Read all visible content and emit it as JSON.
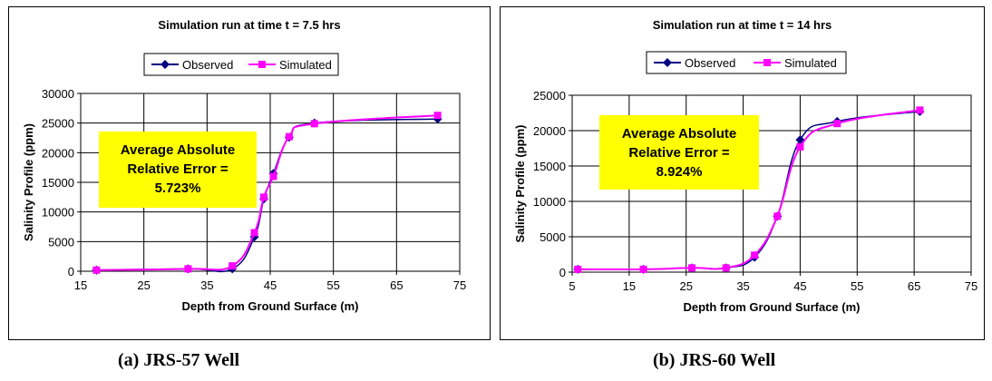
{
  "captions": [
    "(a)  JRS-57 Well",
    "(b)  JRS-60 Well"
  ],
  "colors": {
    "observed": "#000080",
    "simulated": "#ff00ff",
    "error_box": "#ffff00"
  },
  "chart_data": [
    {
      "type": "line",
      "title": "Simulation run at time t = 7.5 hrs",
      "xlabel": "Depth from Ground Surface (m)",
      "ylabel": "Salinity Profile (ppm)",
      "xlim": [
        15,
        75
      ],
      "ylim": [
        0,
        30000
      ],
      "xticks": [
        "15",
        "25",
        "35",
        "45",
        "55",
        "65",
        "75"
      ],
      "yticks": [
        "0",
        "5000",
        "10000",
        "15000",
        "20000",
        "25000",
        "30000"
      ],
      "grid": true,
      "legend_position": "top",
      "annotation": [
        "Average Absolute",
        "Relative  Error =",
        "5.723%"
      ],
      "series": [
        {
          "name": "Observed",
          "x": [
            17.5,
            32,
            39,
            42.5,
            44,
            45.5,
            48,
            52,
            71.5
          ],
          "y": [
            200,
            400,
            400,
            5800,
            12200,
            16500,
            22600,
            25000,
            25700
          ]
        },
        {
          "name": "Simulated",
          "x": [
            17.5,
            32,
            39,
            42.5,
            44,
            45.5,
            48,
            52,
            71.5
          ],
          "y": [
            200,
            400,
            900,
            6500,
            12500,
            16000,
            22700,
            24900,
            26300
          ]
        }
      ]
    },
    {
      "type": "line",
      "title": "Simulation run at time t = 14 hrs",
      "xlabel": "Depth from Ground Surface (m)",
      "ylabel": "Salinity Profile (ppm)",
      "xlim": [
        5,
        75
      ],
      "ylim": [
        0,
        25000
      ],
      "xticks": [
        "5",
        "15",
        "25",
        "35",
        "45",
        "55",
        "65",
        "75"
      ],
      "yticks": [
        "0",
        "5000",
        "10000",
        "15000",
        "20000",
        "25000"
      ],
      "grid": true,
      "legend_position": "top",
      "annotation": [
        "Average Absolute",
        "Relative  Error =",
        "8.924%"
      ],
      "series": [
        {
          "name": "Observed",
          "x": [
            6,
            17.5,
            26,
            32,
            37,
            41,
            45,
            51.5,
            66
          ],
          "y": [
            400,
            400,
            600,
            600,
            2100,
            7900,
            18700,
            21300,
            22700
          ]
        },
        {
          "name": "Simulated",
          "x": [
            6,
            17.5,
            26,
            32,
            37,
            41,
            45,
            51.5,
            66
          ],
          "y": [
            400,
            400,
            600,
            600,
            2400,
            7900,
            17700,
            21000,
            22900
          ]
        }
      ]
    }
  ]
}
